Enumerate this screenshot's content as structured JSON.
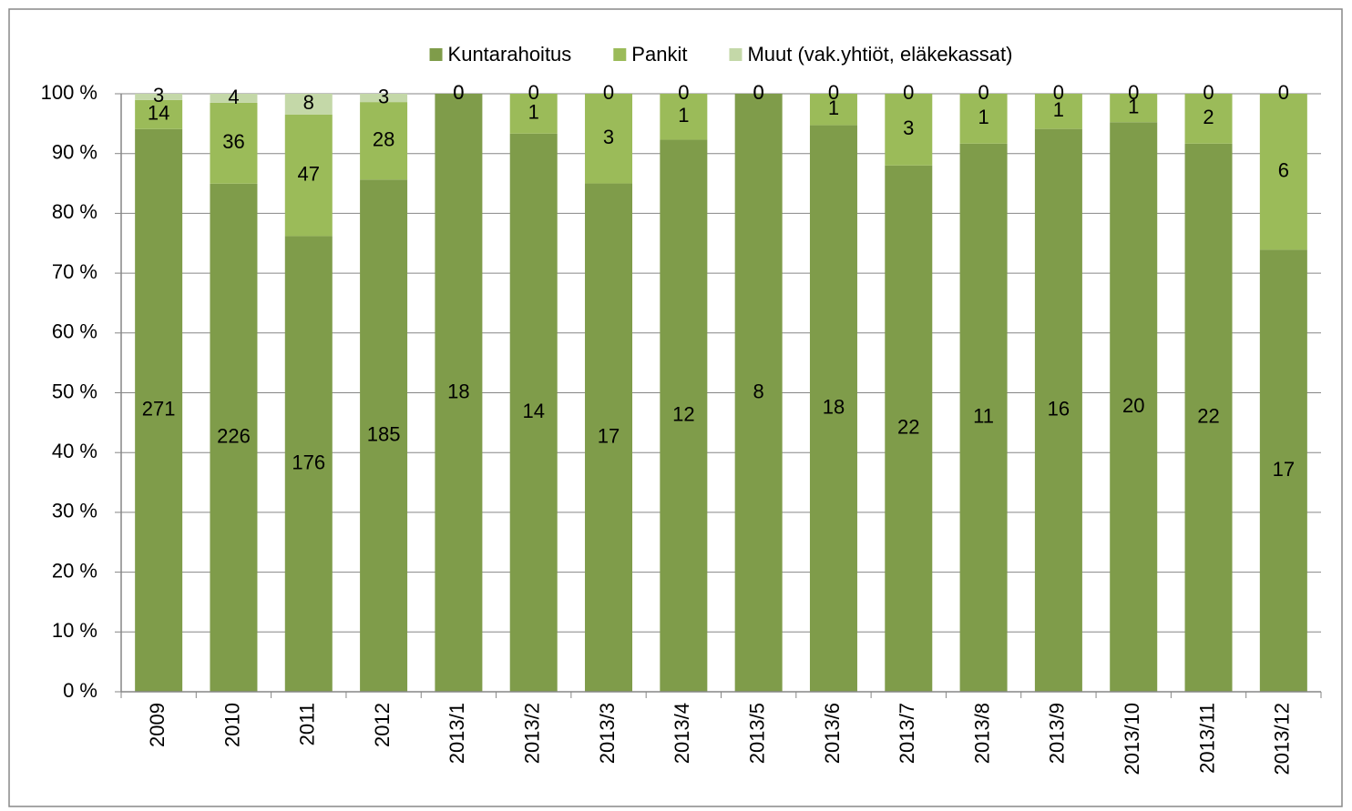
{
  "chart_data": {
    "type": "bar",
    "stacking": "percent",
    "categories": [
      "2009",
      "2010",
      "2011",
      "2012",
      "2013/1",
      "2013/2",
      "2013/3",
      "2013/4",
      "2013/5",
      "2013/6",
      "2013/7",
      "2013/8",
      "2013/9",
      "2013/10",
      "2013/11",
      "2013/12"
    ],
    "series": [
      {
        "name": "Kuntarahoitus",
        "color": "#7f9c4a",
        "values": [
          271,
          226,
          176,
          185,
          18,
          14,
          17,
          12,
          8,
          18,
          22,
          11,
          16,
          20,
          22,
          17
        ]
      },
      {
        "name": "Pankit",
        "color": "#9bbb59",
        "values": [
          14,
          36,
          47,
          28,
          0,
          1,
          3,
          1,
          0,
          1,
          3,
          1,
          1,
          1,
          2,
          6
        ]
      },
      {
        "name": "Muut (vak.yhtiöt, eläkekassat)",
        "color": "#c4d8a8",
        "values": [
          3,
          4,
          8,
          3,
          0,
          0,
          0,
          0,
          0,
          0,
          0,
          0,
          0,
          0,
          0,
          0
        ]
      }
    ],
    "ylim": [
      0,
      100
    ],
    "yticks": [
      {
        "value": 0,
        "label": "0 %"
      },
      {
        "value": 10,
        "label": "10 %"
      },
      {
        "value": 20,
        "label": "20 %"
      },
      {
        "value": 30,
        "label": "30 %"
      },
      {
        "value": 40,
        "label": "40 %"
      },
      {
        "value": 50,
        "label": "50 %"
      },
      {
        "value": 60,
        "label": "60 %"
      },
      {
        "value": 70,
        "label": "70 %"
      },
      {
        "value": 80,
        "label": "80 %"
      },
      {
        "value": 90,
        "label": "90 %"
      },
      {
        "value": 100,
        "label": "100 %"
      }
    ],
    "grid": true,
    "legend": "top"
  }
}
